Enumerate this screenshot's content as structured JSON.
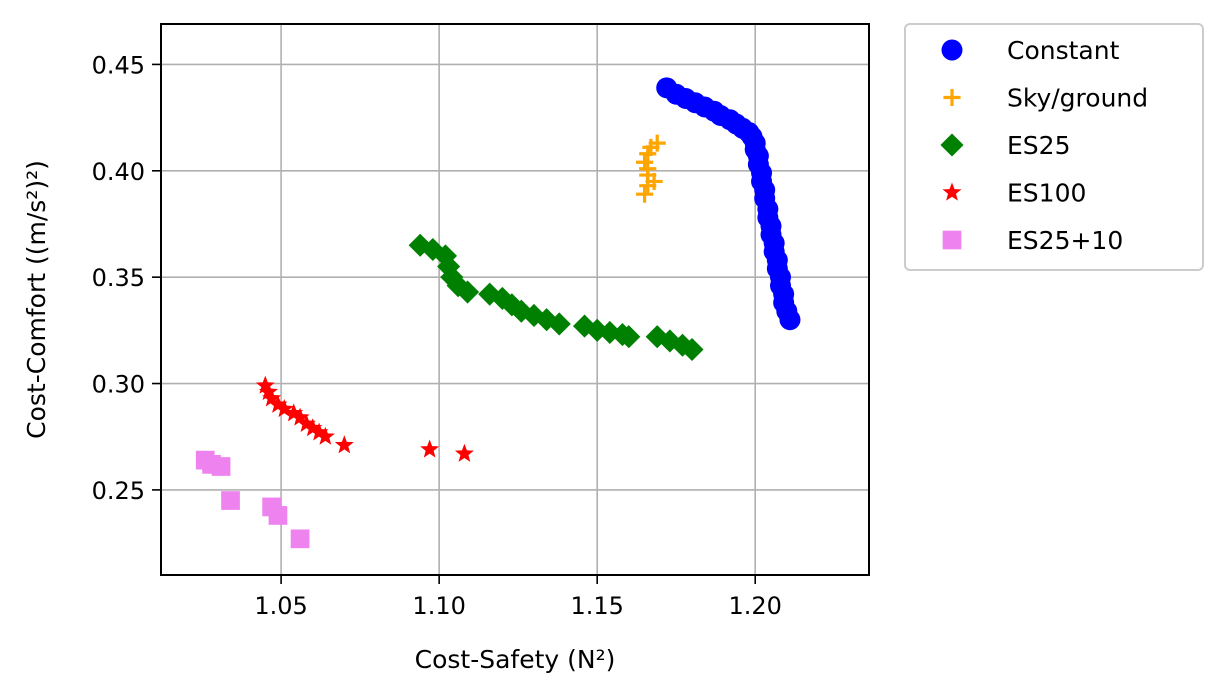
{
  "chart_data": {
    "type": "scatter",
    "xlabel": "Cost-Safety (N²)",
    "ylabel": "Cost-Comfort ((m/s²)²)",
    "xlim": [
      1.012,
      1.236
    ],
    "ylim": [
      0.21,
      0.469
    ],
    "xticks": [
      "1.05",
      "1.10",
      "1.15",
      "1.20"
    ],
    "yticks": [
      "0.25",
      "0.30",
      "0.35",
      "0.40",
      "0.45"
    ],
    "grid": true,
    "legend_position": "outside-upper-right",
    "series": [
      {
        "name": "Constant",
        "marker": "circle",
        "color": "#0000ff",
        "points": [
          [
            1.172,
            0.439
          ],
          [
            1.175,
            0.436
          ],
          [
            1.178,
            0.434
          ],
          [
            1.181,
            0.432
          ],
          [
            1.184,
            0.43
          ],
          [
            1.187,
            0.428
          ],
          [
            1.189,
            0.426
          ],
          [
            1.192,
            0.424
          ],
          [
            1.194,
            0.422
          ],
          [
            1.196,
            0.42
          ],
          [
            1.198,
            0.418
          ],
          [
            1.199,
            0.416
          ],
          [
            1.2,
            0.413
          ],
          [
            1.2,
            0.41
          ],
          [
            1.201,
            0.407
          ],
          [
            1.201,
            0.403
          ],
          [
            1.202,
            0.399
          ],
          [
            1.202,
            0.395
          ],
          [
            1.203,
            0.391
          ],
          [
            1.203,
            0.387
          ],
          [
            1.204,
            0.382
          ],
          [
            1.204,
            0.378
          ],
          [
            1.205,
            0.374
          ],
          [
            1.205,
            0.37
          ],
          [
            1.206,
            0.366
          ],
          [
            1.206,
            0.362
          ],
          [
            1.207,
            0.358
          ],
          [
            1.207,
            0.354
          ],
          [
            1.208,
            0.35
          ],
          [
            1.208,
            0.346
          ],
          [
            1.209,
            0.342
          ],
          [
            1.209,
            0.338
          ],
          [
            1.21,
            0.334
          ],
          [
            1.211,
            0.33
          ]
        ]
      },
      {
        "name": "Sky/ground",
        "marker": "plus",
        "color": "#ffa500",
        "points": [
          [
            1.169,
            0.413
          ],
          [
            1.167,
            0.411
          ],
          [
            1.166,
            0.408
          ],
          [
            1.165,
            0.404
          ],
          [
            1.166,
            0.401
          ],
          [
            1.166,
            0.398
          ],
          [
            1.168,
            0.395
          ],
          [
            1.166,
            0.393
          ],
          [
            1.165,
            0.389
          ]
        ]
      },
      {
        "name": "ES25",
        "marker": "diamond",
        "color": "#008000",
        "points": [
          [
            1.094,
            0.365
          ],
          [
            1.098,
            0.363
          ],
          [
            1.102,
            0.36
          ],
          [
            1.103,
            0.355
          ],
          [
            1.104,
            0.35
          ],
          [
            1.106,
            0.346
          ],
          [
            1.109,
            0.343
          ],
          [
            1.116,
            0.342
          ],
          [
            1.12,
            0.34
          ],
          [
            1.123,
            0.337
          ],
          [
            1.126,
            0.334
          ],
          [
            1.13,
            0.332
          ],
          [
            1.134,
            0.33
          ],
          [
            1.138,
            0.328
          ],
          [
            1.146,
            0.327
          ],
          [
            1.15,
            0.325
          ],
          [
            1.154,
            0.324
          ],
          [
            1.158,
            0.323
          ],
          [
            1.16,
            0.322
          ],
          [
            1.169,
            0.322
          ],
          [
            1.173,
            0.32
          ],
          [
            1.177,
            0.318
          ],
          [
            1.18,
            0.316
          ]
        ]
      },
      {
        "name": "ES100",
        "marker": "star",
        "color": "#ff0000",
        "points": [
          [
            1.045,
            0.299
          ],
          [
            1.046,
            0.296
          ],
          [
            1.047,
            0.293
          ],
          [
            1.049,
            0.29
          ],
          [
            1.051,
            0.288
          ],
          [
            1.054,
            0.286
          ],
          [
            1.056,
            0.284
          ],
          [
            1.058,
            0.281
          ],
          [
            1.06,
            0.279
          ],
          [
            1.062,
            0.277
          ],
          [
            1.064,
            0.275
          ],
          [
            1.07,
            0.271
          ],
          [
            1.097,
            0.269
          ],
          [
            1.108,
            0.267
          ]
        ]
      },
      {
        "name": "ES25+10",
        "marker": "square",
        "color": "#ee82ee",
        "points": [
          [
            1.026,
            0.264
          ],
          [
            1.028,
            0.262
          ],
          [
            1.031,
            0.261
          ],
          [
            1.034,
            0.245
          ],
          [
            1.047,
            0.242
          ],
          [
            1.049,
            0.238
          ],
          [
            1.056,
            0.227
          ]
        ]
      }
    ]
  }
}
